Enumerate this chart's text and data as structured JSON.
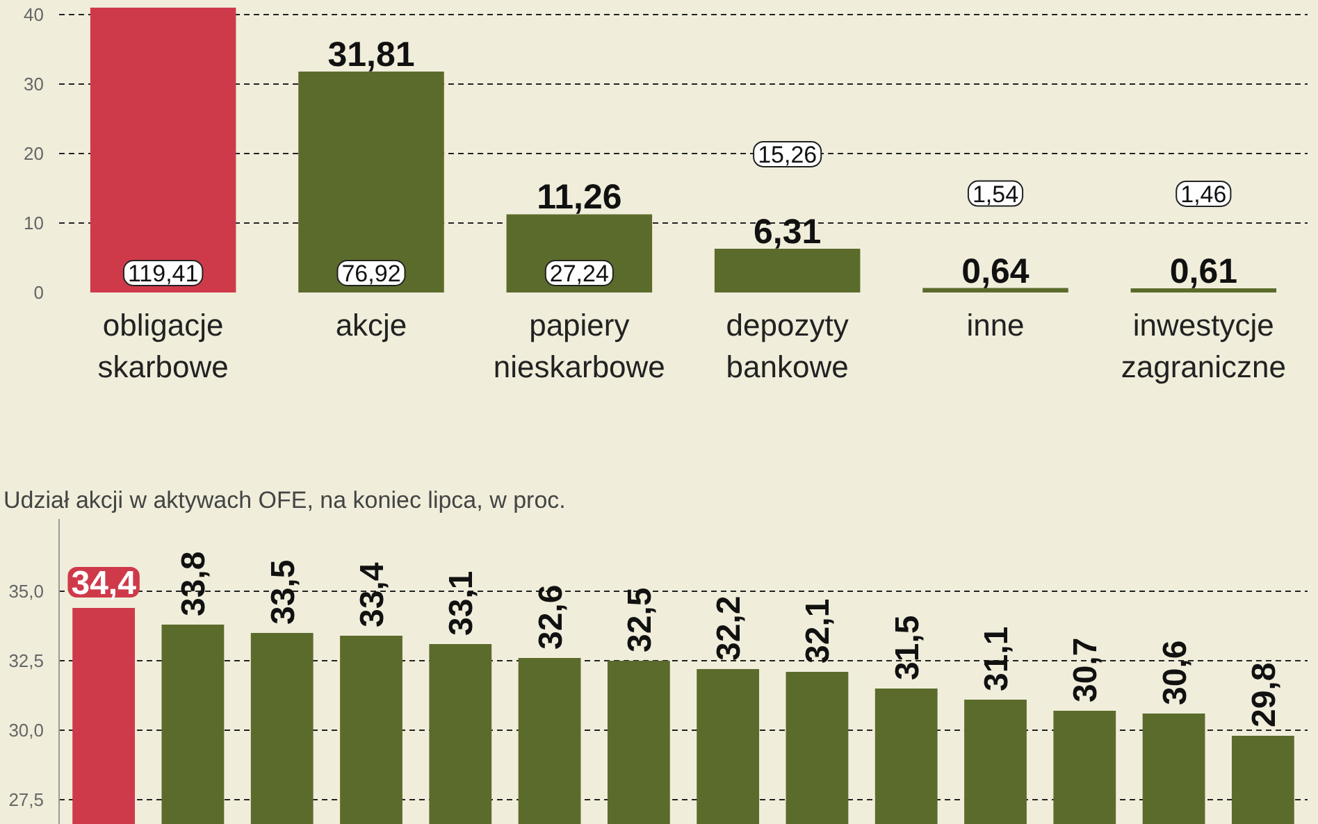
{
  "chart_data": [
    {
      "type": "bar",
      "categories": [
        "obligacje\nskarbowe",
        "akcje",
        "papiery\nnieskarbowe",
        "depozyty\nbankowe",
        "inne",
        "inwestycje\nzagraniczne"
      ],
      "values": [
        41,
        31.81,
        11.26,
        6.31,
        0.64,
        0.61
      ],
      "colors": [
        "#cf3a4a",
        "#5b6b2c",
        "#5b6b2c",
        "#5b6b2c",
        "#5b6b2c",
        "#5b6b2c"
      ],
      "value_labels": [
        null,
        "31,81",
        "11,26",
        "6,31",
        "0,64",
        "0,61"
      ],
      "ylim": [
        0,
        41
      ],
      "yticks": [
        0,
        10,
        20,
        30,
        40
      ],
      "grid": "y",
      "annotations": [
        "119,41",
        "76,92",
        "27,24",
        "15,26",
        "1,54",
        "1,46"
      ]
    },
    {
      "type": "bar",
      "title": "Udział akcji w aktywach OFE, na koniec lipca, w proc.",
      "categories": [
        null,
        null,
        null,
        null,
        null,
        null,
        null,
        null,
        null,
        null,
        null,
        null,
        null,
        null
      ],
      "values": [
        34.4,
        33.8,
        33.5,
        33.4,
        33.1,
        32.6,
        32.5,
        32.2,
        32.1,
        31.5,
        31.1,
        30.7,
        30.6,
        29.8
      ],
      "colors": [
        "#cf3a4a",
        "#5b6b2c",
        "#5b6b2c",
        "#5b6b2c",
        "#5b6b2c",
        "#5b6b2c",
        "#5b6b2c",
        "#5b6b2c",
        "#5b6b2c",
        "#5b6b2c",
        "#5b6b2c",
        "#5b6b2c",
        "#5b6b2c",
        "#5b6b2c"
      ],
      "value_labels": [
        "34,4",
        "33,8",
        "33,5",
        "33,4",
        "33,1",
        "32,6",
        "32,5",
        "32,2",
        "32,1",
        "31,5",
        "31,1",
        "30,7",
        "30,6",
        "29,8"
      ],
      "ylim": [
        26.6,
        37.6
      ],
      "yticks": [
        {
          "value": 27.5,
          "label": "27,5"
        },
        {
          "value": 30,
          "label": "30,0"
        },
        {
          "value": 32.5,
          "label": "32,5"
        },
        {
          "value": 35,
          "label": "35,0"
        }
      ],
      "grid": "y",
      "tick_labels": "y"
    }
  ]
}
